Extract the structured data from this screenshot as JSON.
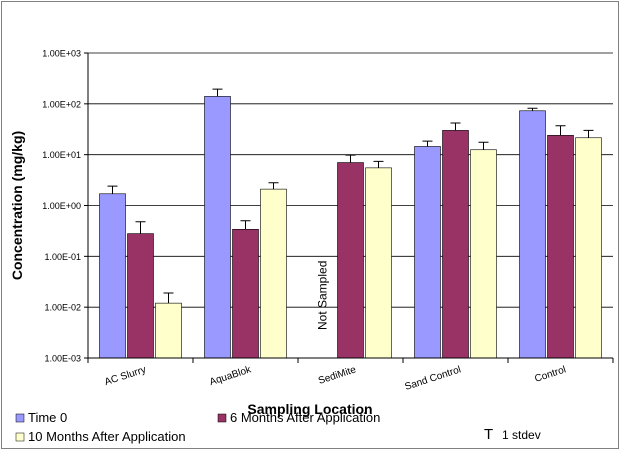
{
  "chart_data": {
    "type": "bar",
    "yscale": "log",
    "ylim": [
      0.001,
      1000
    ],
    "ylabel": "Concentration (mg/kg)",
    "xlabel": "Sampling Location",
    "grid": true,
    "legend_position": "bottom",
    "categories": [
      "AC Slurry",
      "AquaBlok",
      "SediMite",
      "Sand Control",
      "Control"
    ],
    "yticks": [
      "1.00E-03",
      "1.00E-02",
      "1.00E-01",
      "1.00E+00",
      "1.00E+01",
      "1.00E+02",
      "1.00E+03"
    ],
    "series": [
      {
        "name": "Time 0",
        "color": "#9999ff",
        "values": [
          1.7,
          140,
          null,
          14.5,
          73
        ],
        "errors": [
          2.4,
          195,
          null,
          18.5,
          82
        ]
      },
      {
        "name": "6 Months After Application",
        "color": "#993366",
        "values": [
          0.28,
          0.34,
          7,
          30,
          24
        ],
        "errors": [
          0.48,
          0.5,
          9.8,
          42,
          37
        ]
      },
      {
        "name": "10 Months After Application",
        "color": "#ffffcc",
        "values": [
          0.012,
          2.1,
          5.5,
          12.5,
          21.5
        ],
        "errors": [
          0.019,
          2.8,
          7.4,
          17.5,
          30
        ]
      }
    ],
    "annotations": [
      {
        "category": "SediMite",
        "text": "Not Sampled"
      }
    ],
    "error_legend": "1 stdev",
    "error_legend_symbol": "T"
  }
}
